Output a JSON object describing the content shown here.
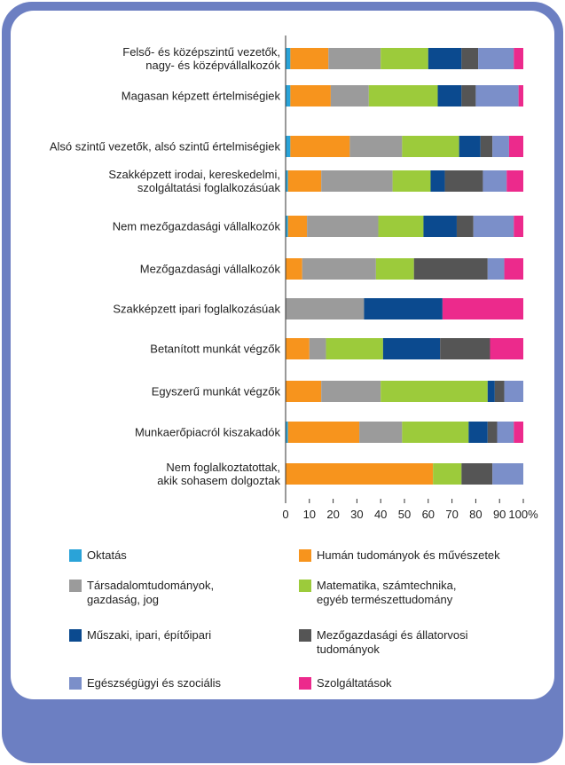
{
  "chart_data": {
    "type": "stacked-bar-horizontal",
    "categories": [
      "Felső- és középszintű vezetők,\nnagy- és középvállalkozók",
      "Magasan képzett értelmiségiek",
      "Alsó szintű vezetők, alsó szintű értelmiségiek",
      "Szakképzett irodai, kereskedelmi,\nszolgáltatási foglalkozásúak",
      "Nem mezőgazdasági vállalkozók",
      "Mezőgazdasági vállalkozók",
      "Szakképzett ipari foglalkozásúak",
      "Betanított munkát végzők",
      "Egyszerű munkát végzők",
      "Munkaerőpiacról kiszakadók",
      "Nem foglalkoztatottak,\nakik sohasem dolgoztak"
    ],
    "series": [
      {
        "name": "Oktatás",
        "color": "#2aa3d8",
        "values": [
          2,
          2,
          2,
          1,
          1,
          0,
          0,
          0,
          0,
          1,
          0
        ]
      },
      {
        "name": "Humán tudományok és művészetek",
        "color": "#f7941d",
        "values": [
          16,
          17,
          25,
          14,
          8,
          7,
          0,
          10,
          15,
          30,
          62
        ]
      },
      {
        "name": "Társadalomtudományok,\ngazdaság, jog",
        "color": "#9b9b9b",
        "values": [
          22,
          16,
          22,
          30,
          30,
          31,
          33,
          7,
          25,
          18,
          0
        ]
      },
      {
        "name": "Matematika, számtechnika,\negyéb természettudomány",
        "color": "#9ccb3b",
        "values": [
          20,
          29,
          24,
          16,
          19,
          16,
          0,
          24,
          45,
          28,
          12
        ]
      },
      {
        "name": "Műszaki, ipari, építőipari",
        "color": "#0b4a8f",
        "values": [
          14,
          10,
          9,
          6,
          14,
          0,
          33,
          24,
          3,
          8,
          0
        ]
      },
      {
        "name": "Mezőgazdasági és állatorvosi\ntudományok",
        "color": "#555555",
        "values": [
          7,
          6,
          5,
          16,
          7,
          31,
          0,
          21,
          4,
          4,
          13
        ]
      },
      {
        "name": "Egészségügyi és szociális",
        "color": "#7b8fc9",
        "values": [
          15,
          18,
          7,
          10,
          17,
          7,
          0,
          0,
          8,
          7,
          13
        ]
      },
      {
        "name": "Szolgáltatások",
        "color": "#ec2a8c",
        "values": [
          4,
          2,
          6,
          7,
          4,
          8,
          34,
          14,
          0,
          4,
          0
        ]
      }
    ],
    "xlim": [
      0,
      100
    ],
    "xticks": [
      0,
      10,
      20,
      30,
      40,
      50,
      60,
      70,
      80,
      90,
      {
        "value": 100,
        "label": "100%"
      }
    ]
  }
}
